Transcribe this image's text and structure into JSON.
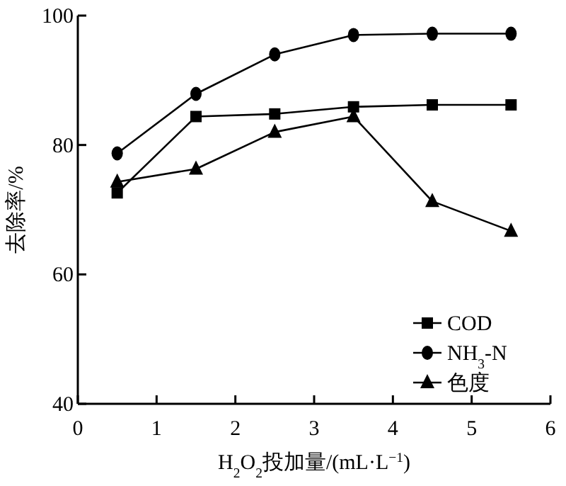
{
  "chart_data": {
    "type": "line",
    "xlabel": "H$_{2}$O$_{2}$投加量/(mL·L$^{−1}$)",
    "ylabel": "去除率/%",
    "x": [
      0.5,
      1.5,
      2.5,
      3.5,
      4.5,
      5.5
    ],
    "xlim": [
      0,
      6
    ],
    "xticks": [
      0,
      1,
      2,
      3,
      4,
      5,
      6
    ],
    "ylim": [
      40,
      100
    ],
    "yticks": [
      40,
      60,
      80,
      100
    ],
    "grid": false,
    "legend": "bottom right",
    "line_style": "solid",
    "series": [
      {
        "name": "COD",
        "color": "#000000",
        "marker": "square",
        "values": [
          72.6,
          84.4,
          84.8,
          85.9,
          86.2,
          86.2
        ]
      },
      {
        "name": "NH$_{3}$-N",
        "color": "#000000",
        "marker": "circle",
        "values": [
          78.7,
          87.9,
          94.0,
          97.0,
          97.2,
          97.2
        ]
      },
      {
        "name": "色度",
        "color": "#000000",
        "marker": "triangle",
        "values": [
          74.3,
          76.3,
          82.0,
          84.4,
          71.3,
          66.7
        ]
      }
    ]
  }
}
